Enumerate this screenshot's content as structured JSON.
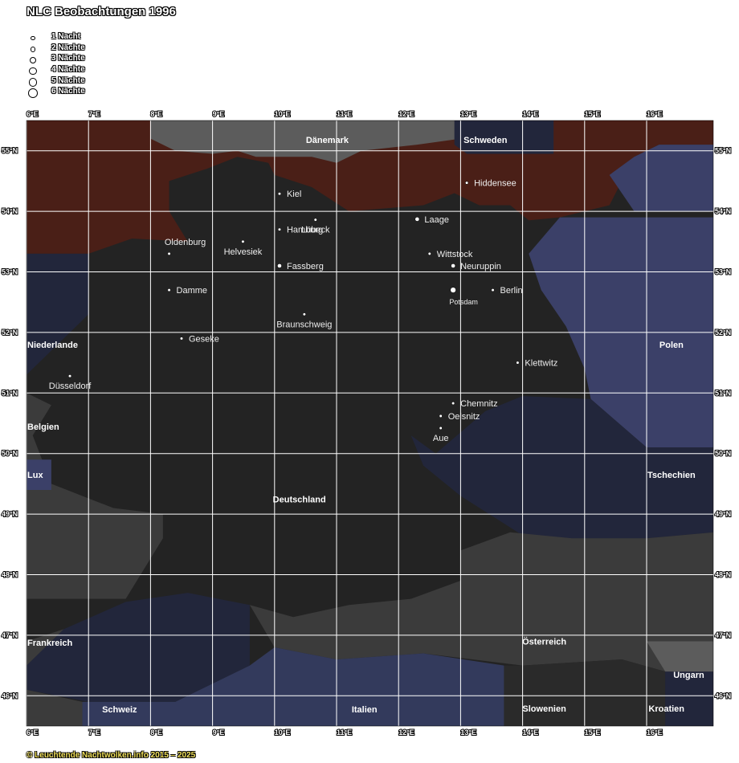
{
  "title": "NLC Beobachtungen 1996",
  "legend": [
    {
      "label": "1 Nacht",
      "nights": 1
    },
    {
      "label": "2 Nächte",
      "nights": 2
    },
    {
      "label": "3 Nächte",
      "nights": 3
    },
    {
      "label": "4 Nächte",
      "nights": 4
    },
    {
      "label": "5 Nächte",
      "nights": 5
    },
    {
      "label": "6 Nächte",
      "nights": 6
    }
  ],
  "credit": "© Leuchtende Nachtwolken.info 2015 – 2025",
  "axes": {
    "lon_ticks": [
      "6°E",
      "7°E",
      "8°E",
      "9°E",
      "10°E",
      "11°E",
      "12°E",
      "13°E",
      "14°E",
      "15°E",
      "16°E"
    ],
    "lat_ticks": [
      "55°N",
      "54°N",
      "53°N",
      "52°N",
      "51°N",
      "50°N",
      "49°N",
      "48°N",
      "47°N",
      "46°N"
    ],
    "lon_range": [
      6,
      17.1
    ],
    "lat_range": [
      45.5,
      55.5
    ],
    "grid": true
  },
  "colors": {
    "germany": "#232323",
    "sea": "#4a1f17",
    "scandinavia": "#5c5c5c",
    "poland": "#3b4068",
    "navy": "#22263b",
    "grey": "#3b3b3b",
    "italy": "#333a5c",
    "lux": "#3b4068",
    "grid": "#ffffff"
  },
  "countries": [
    {
      "label": "Dänemark",
      "lon": 10.85,
      "lat": 55.18
    },
    {
      "label": "Schweden",
      "lon": 13.4,
      "lat": 55.18
    },
    {
      "label": "Niederlande",
      "lon": 6.4,
      "lat": 51.8
    },
    {
      "label": "Polen",
      "lon": 16.4,
      "lat": 51.8
    },
    {
      "label": "Belgien",
      "lon": 6.25,
      "lat": 50.45
    },
    {
      "label": "Lux",
      "lon": 6.12,
      "lat": 49.65
    },
    {
      "label": "Deutschland",
      "lon": 10.4,
      "lat": 49.25
    },
    {
      "label": "Tschechien",
      "lon": 16.4,
      "lat": 49.65
    },
    {
      "label": "Frankreich",
      "lon": 6.35,
      "lat": 46.88
    },
    {
      "label": "Österreich",
      "lon": 14.35,
      "lat": 46.9
    },
    {
      "label": "Ungarn",
      "lon": 16.68,
      "lat": 46.35
    },
    {
      "label": "Schweiz",
      "lon": 7.5,
      "lat": 45.78
    },
    {
      "label": "Italien",
      "lon": 11.45,
      "lat": 45.78
    },
    {
      "label": "Slowenien",
      "lon": 14.35,
      "lat": 45.79
    },
    {
      "label": "Kroatien",
      "lon": 16.32,
      "lat": 45.79
    }
  ],
  "stations": [
    {
      "name": "Kiel",
      "lon": 10.08,
      "lat": 54.29,
      "nights": 1,
      "label_pos": "right"
    },
    {
      "name": "Hiddensee",
      "lon": 13.1,
      "lat": 54.47,
      "nights": 1,
      "label_pos": "right"
    },
    {
      "name": "Lübeck",
      "lon": 10.66,
      "lat": 53.86,
      "nights": 1,
      "label_pos": "below"
    },
    {
      "name": "Laage",
      "lon": 12.3,
      "lat": 53.87,
      "nights": 2,
      "label_pos": "right"
    },
    {
      "name": "Hamburg",
      "lon": 10.08,
      "lat": 53.7,
      "nights": 1,
      "label_pos": "right"
    },
    {
      "name": "Oldenburg",
      "lon": 8.3,
      "lat": 53.3,
      "nights": 1,
      "label_pos": "above"
    },
    {
      "name": "Helvesiek",
      "lon": 9.49,
      "lat": 53.5,
      "nights": 1,
      "label_pos": "below"
    },
    {
      "name": "Wittstock",
      "lon": 12.5,
      "lat": 53.3,
      "nights": 1,
      "label_pos": "right"
    },
    {
      "name": "Neuruppin",
      "lon": 12.88,
      "lat": 53.1,
      "nights": 2,
      "label_pos": "right"
    },
    {
      "name": "Fassberg",
      "lon": 10.08,
      "lat": 53.1,
      "nights": 2,
      "label_pos": "right"
    },
    {
      "name": "Damme",
      "lon": 8.3,
      "lat": 52.7,
      "nights": 1,
      "label_pos": "right"
    },
    {
      "name": "Berlin",
      "lon": 13.52,
      "lat": 52.7,
      "nights": 1,
      "label_pos": "right"
    },
    {
      "name": "Potsdam",
      "lon": 12.88,
      "lat": 52.7,
      "nights": 3,
      "label_pos": "below-small"
    },
    {
      "name": "Braunschweig",
      "lon": 10.48,
      "lat": 52.3,
      "nights": 1,
      "label_pos": "below"
    },
    {
      "name": "Geseke",
      "lon": 8.5,
      "lat": 51.9,
      "nights": 1,
      "label_pos": "right"
    },
    {
      "name": "Klettwitz",
      "lon": 13.92,
      "lat": 51.5,
      "nights": 1,
      "label_pos": "right"
    },
    {
      "name": "Düsseldorf",
      "lon": 6.7,
      "lat": 51.28,
      "nights": 1,
      "label_pos": "below"
    },
    {
      "name": "Chemnitz",
      "lon": 12.88,
      "lat": 50.83,
      "nights": 1,
      "label_pos": "right"
    },
    {
      "name": "Oelsnitz",
      "lon": 12.68,
      "lat": 50.62,
      "nights": 1,
      "label_pos": "right"
    },
    {
      "name": "Aue",
      "lon": 12.68,
      "lat": 50.42,
      "nights": 1,
      "label_pos": "below"
    }
  ]
}
